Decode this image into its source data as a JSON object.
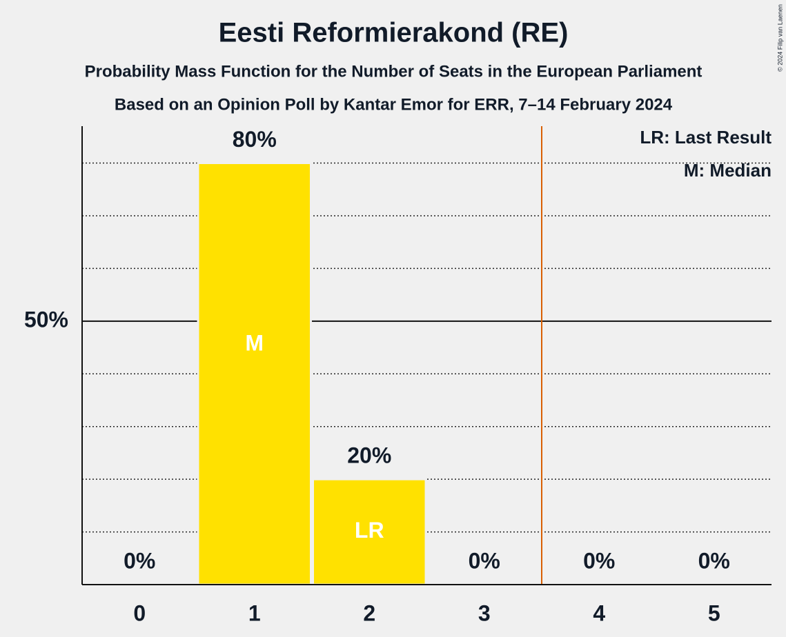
{
  "chart_data": {
    "type": "bar",
    "title": "Eesti Reformierakond (RE)",
    "subtitle": "Probability Mass Function for the Number of Seats in the European Parliament",
    "subtitle2": "Based on an Opinion Poll by Kantar Emor for ERR, 7–14 February 2024",
    "categories": [
      "0",
      "1",
      "2",
      "3",
      "4",
      "5"
    ],
    "values": [
      0,
      80,
      20,
      0,
      0,
      0
    ],
    "value_labels": [
      "0%",
      "80%",
      "20%",
      "0%",
      "0%",
      "0%"
    ],
    "color": "#ffe100",
    "ylim": [
      0,
      87
    ],
    "yticks": [
      {
        "value": 50,
        "label": "50%"
      }
    ],
    "minor_yticks": [
      10,
      20,
      30,
      40,
      60,
      70,
      80
    ],
    "grid": true,
    "annotations": [
      {
        "x": 1,
        "text": "M"
      },
      {
        "x": 2,
        "text": "LR"
      }
    ],
    "threshold_x": 3.5,
    "threshold_color": "#d95f02",
    "legend": [
      "LR: Last Result",
      "M: Median"
    ],
    "copyright": "© 2024 Filip van Laenen"
  }
}
